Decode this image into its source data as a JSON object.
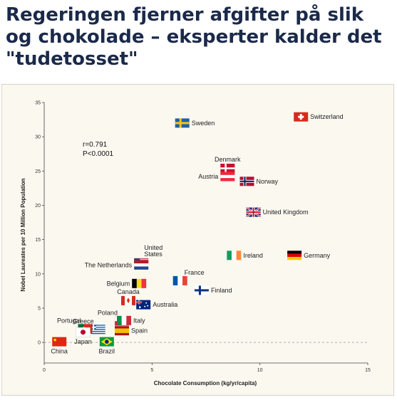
{
  "headline": "Regeringen fjerner afgifter på slik og chokolade – eksperter kalder det \"tudetosset\"",
  "chart_data": {
    "type": "scatter",
    "xlabel": "Chocolate Consumption (kg/yr/capita)",
    "ylabel": "Nobel Laureates per 10 Million Population",
    "xlim": [
      0,
      15
    ],
    "ylim": [
      -3,
      35
    ],
    "xticks": [
      0,
      5,
      10,
      15
    ],
    "yticks": [
      0,
      5,
      10,
      15,
      20,
      25,
      30,
      35
    ],
    "annotations": [
      "r=0.791",
      "P<0.0001"
    ],
    "grid": false,
    "points": [
      {
        "label": "Sweden",
        "x": 6.4,
        "y": 32.0,
        "flag": "sweden"
      },
      {
        "label": "Switzerland",
        "x": 11.9,
        "y": 32.9,
        "flag": "switzerland"
      },
      {
        "label": "Denmark",
        "x": 8.5,
        "y": 25.4,
        "flag": "denmark"
      },
      {
        "label": "Austria",
        "x": 8.5,
        "y": 24.2,
        "flag": "austria"
      },
      {
        "label": "Norway",
        "x": 9.4,
        "y": 23.5,
        "flag": "norway"
      },
      {
        "label": "United Kingdom",
        "x": 9.7,
        "y": 19.0,
        "flag": "uk"
      },
      {
        "label": "Ireland",
        "x": 8.8,
        "y": 12.7,
        "flag": "ireland"
      },
      {
        "label": "Germany",
        "x": 11.6,
        "y": 12.7,
        "flag": "germany"
      },
      {
        "label": "United States",
        "x": 4.5,
        "y": 11.6,
        "flag": "us_stripes"
      },
      {
        "label": "The Netherlands",
        "x": 4.5,
        "y": 11.3,
        "flag": "netherlands"
      },
      {
        "label": "France",
        "x": 6.3,
        "y": 9.0,
        "flag": "france"
      },
      {
        "label": "Finland",
        "x": 7.3,
        "y": 7.6,
        "flag": "finland"
      },
      {
        "label": "Belgium",
        "x": 4.4,
        "y": 8.6,
        "flag": "belgium"
      },
      {
        "label": "Canada",
        "x": 3.9,
        "y": 6.1,
        "flag": "canada"
      },
      {
        "label": "Australia",
        "x": 4.6,
        "y": 5.5,
        "flag": "australia"
      },
      {
        "label": "Poland",
        "x": 3.6,
        "y": 3.1,
        "flag": "poland"
      },
      {
        "label": "Greece",
        "x": 2.5,
        "y": 1.9,
        "flag": "greece"
      },
      {
        "label": "Portugal",
        "x": 1.9,
        "y": 2.0,
        "flag": "portugal"
      },
      {
        "label": "Italy",
        "x": 3.7,
        "y": 3.2,
        "flag": "italy"
      },
      {
        "label": "Spain",
        "x": 3.6,
        "y": 1.7,
        "flag": "spain"
      },
      {
        "label": "Japan",
        "x": 1.8,
        "y": 1.5,
        "flag": "japan"
      },
      {
        "label": "China",
        "x": 0.7,
        "y": 0.1,
        "flag": "china"
      },
      {
        "label": "Brazil",
        "x": 2.9,
        "y": 0.1,
        "flag": "brazil"
      }
    ]
  }
}
